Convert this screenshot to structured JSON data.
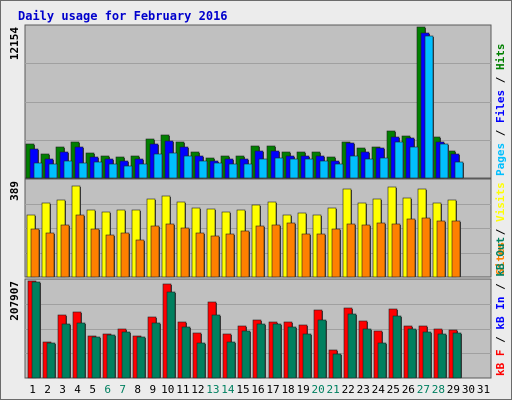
{
  "title": "Daily usage for February 2016",
  "colors": {
    "frame_bg": "#ececec",
    "plot_bg": "#c0c0c0",
    "gridline": "#a0a0a0",
    "pages": "#00bfff",
    "files": "#0000ff",
    "hits": "#008000",
    "visits": "#ffff00",
    "sites": "#ff8000",
    "kb_in": "#ff0000",
    "kb_out": "#00805f",
    "weekend_label": "#008060",
    "weekday_label": "#000000"
  },
  "panel_labels": {
    "top": {
      "max_label": "12154",
      "legend": [
        {
          "text": "Pages",
          "color": "#00bfff"
        },
        {
          "text": " / ",
          "color": "#000000"
        },
        {
          "text": "Files",
          "color": "#0000ff"
        },
        {
          "text": " / ",
          "color": "#000000"
        },
        {
          "text": "Hits",
          "color": "#008000"
        }
      ]
    },
    "middle": {
      "max_label": "389",
      "legend": [
        {
          "text": "Sites",
          "color": "#ff8000"
        },
        {
          "text": " / ",
          "color": "#000000"
        },
        {
          "text": "Visits",
          "color": "#ffff00"
        }
      ]
    },
    "bottom": {
      "max_label": "207907",
      "legend": [
        {
          "text": "kB F",
          "color": "#ff0000"
        },
        {
          "text": " / ",
          "color": "#000000"
        },
        {
          "text": "kB In",
          "color": "#0000ff"
        },
        {
          "text": " / ",
          "color": "#000000"
        },
        {
          "text": "kB Out",
          "color": "#00805f"
        }
      ]
    }
  },
  "chart_data": {
    "type": "bar",
    "categories": [
      "1",
      "2",
      "3",
      "4",
      "5",
      "6",
      "7",
      "8",
      "9",
      "10",
      "11",
      "12",
      "13",
      "14",
      "15",
      "16",
      "17",
      "18",
      "19",
      "20",
      "21",
      "22",
      "23",
      "24",
      "25",
      "26",
      "27",
      "28",
      "29",
      "30",
      "31"
    ],
    "weekend_days": [
      "6",
      "7",
      "13",
      "14",
      "20",
      "21",
      "27",
      "28"
    ],
    "panels": [
      {
        "ylim": [
          0,
          12154
        ],
        "series": [
          {
            "name": "Hits",
            "values": [
              2700,
              1900,
              2500,
              2900,
              2000,
              1800,
              1700,
              1800,
              3100,
              3500,
              2900,
              2100,
              1600,
              1800,
              1800,
              2600,
              2600,
              2100,
              2100,
              2100,
              1700,
              2900,
              2400,
              2500,
              3800,
              3400,
              12154,
              3300,
              2200,
              null,
              null
            ]
          },
          {
            "name": "Files",
            "values": [
              2300,
              1500,
              2100,
              2500,
              1700,
              1500,
              1400,
              1500,
              2700,
              3000,
              2500,
              1800,
              1400,
              1500,
              1500,
              2200,
              2200,
              1800,
              1800,
              1800,
              1400,
              2800,
              2100,
              2400,
              3300,
              3200,
              11700,
              2900,
              1900,
              null,
              null
            ]
          },
          {
            "name": "Pages",
            "values": [
              1200,
              1100,
              1400,
              1200,
              1300,
              1100,
              1000,
              1100,
              1900,
              2000,
              1800,
              1400,
              1200,
              1100,
              1100,
              1500,
              1600,
              1500,
              1500,
              1400,
              1100,
              1800,
              1500,
              1600,
              2900,
              2500,
              11400,
              2700,
              1300,
              null,
              null
            ]
          }
        ]
      },
      {
        "ylim": [
          0,
          389
        ],
        "series": [
          {
            "name": "Visits",
            "values": [
              250,
              300,
              310,
              370,
              270,
              265,
              270,
              270,
              315,
              330,
              305,
              280,
              275,
              265,
              270,
              290,
              305,
              250,
              260,
              250,
              280,
              355,
              300,
              315,
              365,
              320,
              355,
              300,
              310,
              null,
              null
            ]
          },
          {
            "name": "Sites",
            "values": [
              195,
              180,
              210,
              250,
              195,
              170,
              180,
              150,
              205,
              215,
              200,
              180,
              165,
              175,
              185,
              205,
              210,
              220,
              175,
              175,
              195,
              215,
              210,
              220,
              215,
              235,
              240,
              225,
              225,
              null,
              null
            ]
          }
        ]
      },
      {
        "ylim": [
          0,
          207907
        ],
        "series": [
          {
            "name": "kB F",
            "values": [
              207907,
              78000,
              135000,
              142000,
              90000,
              95000,
              105000,
              90000,
              130000,
              202000,
              120000,
              96000,
              163000,
              95000,
              111000,
              125000,
              120000,
              120000,
              114000,
              145000,
              60000,
              150000,
              122000,
              101000,
              148000,
              112000,
              111000,
              105000,
              103000,
              null,
              null
            ]
          },
          {
            "name": "kB Out",
            "values": [
              205000,
              75000,
              115000,
              118000,
              87000,
              93000,
              98000,
              87000,
              118000,
              185000,
              110000,
              75000,
              135000,
              77000,
              100000,
              115000,
              115000,
              110000,
              95000,
              125000,
              52000,
              138000,
              105000,
              75000,
              133000,
              105000,
              98000,
              95000,
              97000,
              null,
              null
            ]
          }
        ]
      }
    ]
  }
}
